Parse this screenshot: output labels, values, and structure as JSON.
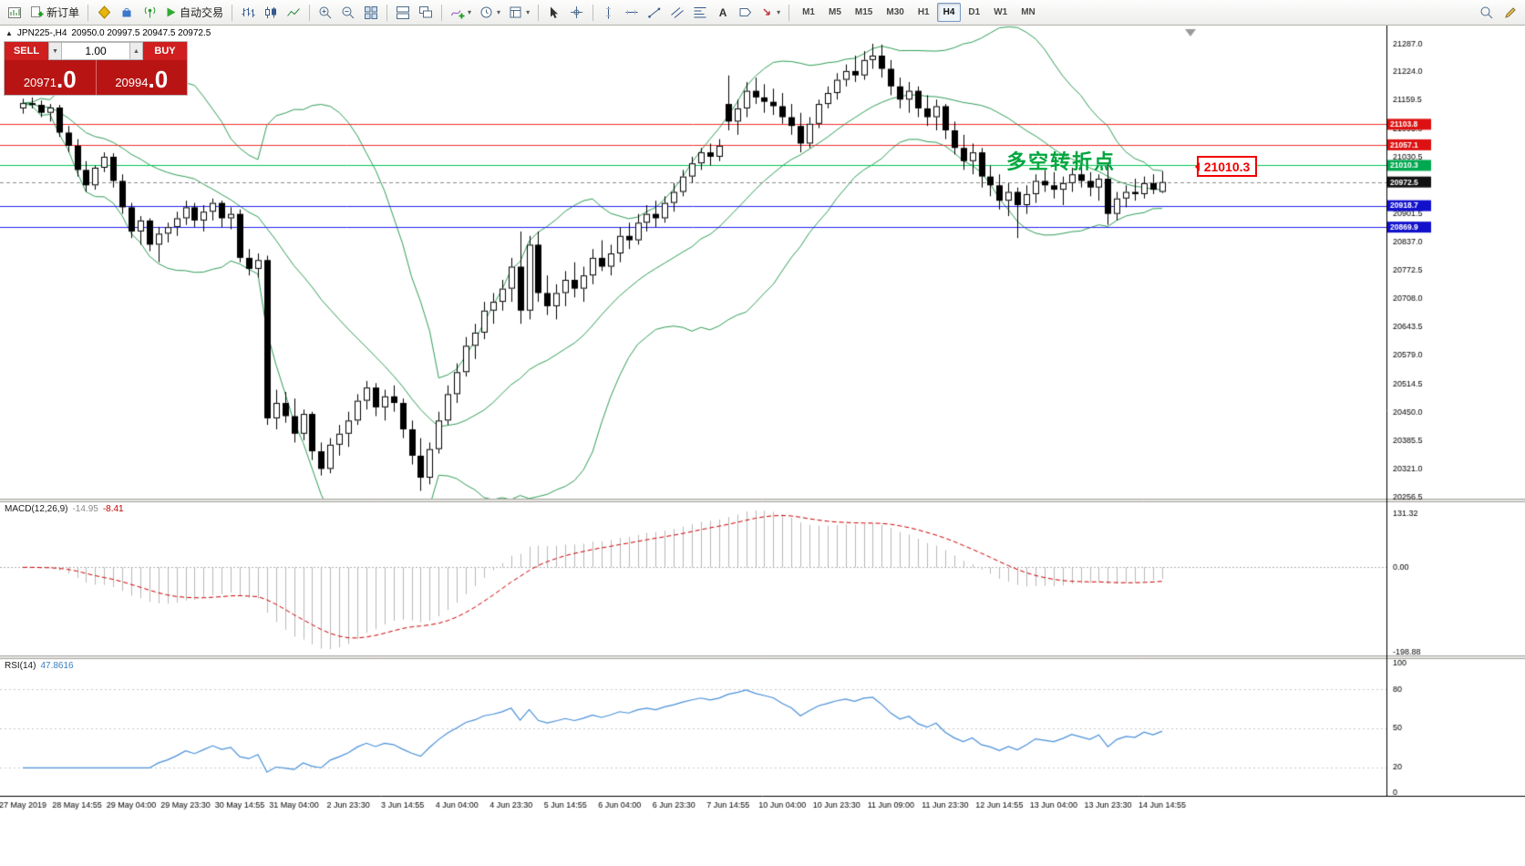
{
  "toolbar": {
    "new_order_label": "新订单",
    "autotrading_label": "自动交易",
    "text_tool_label": "A",
    "caret_icon": "▾",
    "timeframes": [
      "M1",
      "M5",
      "M15",
      "M30",
      "H1",
      "H4",
      "D1",
      "W1",
      "MN"
    ],
    "active_timeframe": "H4"
  },
  "chart_header": {
    "collapse_icon": "▲",
    "symbol": "JPN225-,H4",
    "ohlc": "20950.0 20997.5 20947.5 20972.5"
  },
  "trade_panel": {
    "sell_label": "SELL",
    "buy_label": "BUY",
    "volume": "1.00",
    "spin_down_icon": "▼",
    "spin_up_icon": "▲",
    "sell_price": "20971",
    "sell_price_big": ".0",
    "buy_price": "20994",
    "buy_price_big": ".0"
  },
  "macd_header": {
    "label": "MACD(12,26,9)",
    "main_value": "-14.95",
    "signal_value": "-8.41"
  },
  "rsi_header": {
    "label": "RSI(14)",
    "value": "47.8616"
  },
  "annotations": {
    "turning_point": "多空转折点",
    "price_box": "21010.3"
  },
  "chart_data": {
    "type": "candlestick",
    "symbol": "JPN225-",
    "timeframe": "H4",
    "price_range": [
      20256.5,
      21287.0
    ],
    "y_axis_ticks": [
      21287.0,
      21224.0,
      21159.5,
      21095.0,
      21030.5,
      20901.5,
      20837.0,
      20772.5,
      20708.0,
      20643.5,
      20579.0,
      20514.5,
      20450.0,
      20385.5,
      20321.0,
      20256.5
    ],
    "x_labels": [
      "27 May 2019",
      "28 May 14:55",
      "29 May 04:00",
      "29 May 23:30",
      "30 May 14:55",
      "31 May 04:00",
      "2 Jun 23:30",
      "3 Jun 14:55",
      "4 Jun 04:00",
      "4 Jun 23:30",
      "5 Jun 14:55",
      "6 Jun 04:00",
      "6 Jun 23:30",
      "7 Jun 14:55",
      "10 Jun 04:00",
      "10 Jun 23:30",
      "11 Jun 09:00",
      "11 Jun 23:30",
      "12 Jun 14:55",
      "13 Jun 04:00",
      "13 Jun 23:30",
      "14 Jun 14:55"
    ],
    "candles": [
      [
        21140,
        21162,
        21128,
        21152
      ],
      [
        21152,
        21165,
        21140,
        21148
      ],
      [
        21148,
        21158,
        21120,
        21130
      ],
      [
        21130,
        21150,
        21110,
        21142
      ],
      [
        21142,
        21148,
        21075,
        21085
      ],
      [
        21085,
        21100,
        21040,
        21055
      ],
      [
        21055,
        21070,
        20985,
        21000
      ],
      [
        21000,
        21020,
        20950,
        20965
      ],
      [
        20965,
        21010,
        20955,
        21005
      ],
      [
        21005,
        21040,
        20995,
        21030
      ],
      [
        21030,
        21038,
        20960,
        20975
      ],
      [
        20975,
        20990,
        20900,
        20915
      ],
      [
        20915,
        20925,
        20845,
        20860
      ],
      [
        20860,
        20895,
        20830,
        20885
      ],
      [
        20885,
        20890,
        20815,
        20830
      ],
      [
        20830,
        20870,
        20790,
        20855
      ],
      [
        20855,
        20880,
        20835,
        20870
      ],
      [
        20870,
        20905,
        20850,
        20890
      ],
      [
        20890,
        20930,
        20875,
        20915
      ],
      [
        20915,
        20925,
        20870,
        20885
      ],
      [
        20885,
        20920,
        20860,
        20905
      ],
      [
        20905,
        20935,
        20885,
        20925
      ],
      [
        20925,
        20930,
        20870,
        20890
      ],
      [
        20890,
        20915,
        20865,
        20900
      ],
      [
        20900,
        20910,
        20790,
        20800
      ],
      [
        20800,
        20820,
        20760,
        20775
      ],
      [
        20775,
        20810,
        20755,
        20795
      ],
      [
        20795,
        20805,
        20420,
        20435
      ],
      [
        20435,
        20500,
        20410,
        20470
      ],
      [
        20470,
        20495,
        20425,
        20440
      ],
      [
        20440,
        20480,
        20380,
        20400
      ],
      [
        20400,
        20455,
        20385,
        20445
      ],
      [
        20445,
        20450,
        20340,
        20360
      ],
      [
        20360,
        20380,
        20305,
        20320
      ],
      [
        20320,
        20390,
        20310,
        20375
      ],
      [
        20375,
        20420,
        20350,
        20400
      ],
      [
        20400,
        20450,
        20370,
        20430
      ],
      [
        20430,
        20490,
        20420,
        20475
      ],
      [
        20475,
        20520,
        20455,
        20505
      ],
      [
        20505,
        20515,
        20440,
        20460
      ],
      [
        20460,
        20500,
        20430,
        20485
      ],
      [
        20485,
        20510,
        20450,
        20470
      ],
      [
        20470,
        20480,
        20390,
        20410
      ],
      [
        20410,
        20430,
        20330,
        20350
      ],
      [
        20350,
        20390,
        20270,
        20300
      ],
      [
        20300,
        20380,
        20285,
        20365
      ],
      [
        20365,
        20450,
        20355,
        20430
      ],
      [
        20430,
        20510,
        20420,
        20490
      ],
      [
        20490,
        20560,
        20470,
        20540
      ],
      [
        20540,
        20620,
        20530,
        20600
      ],
      [
        20600,
        20650,
        20570,
        20630
      ],
      [
        20630,
        20700,
        20615,
        20680
      ],
      [
        20680,
        20720,
        20650,
        20700
      ],
      [
        20700,
        20750,
        20680,
        20730
      ],
      [
        20730,
        20800,
        20700,
        20780
      ],
      [
        20780,
        20860,
        20650,
        20680
      ],
      [
        20680,
        20850,
        20660,
        20830
      ],
      [
        20830,
        20860,
        20700,
        20720
      ],
      [
        20720,
        20760,
        20670,
        20690
      ],
      [
        20690,
        20740,
        20660,
        20720
      ],
      [
        20720,
        20770,
        20690,
        20750
      ],
      [
        20750,
        20790,
        20710,
        20730
      ],
      [
        20730,
        20780,
        20700,
        20760
      ],
      [
        20760,
        20820,
        20740,
        20800
      ],
      [
        20800,
        20840,
        20770,
        20780
      ],
      [
        20780,
        20830,
        20760,
        20810
      ],
      [
        20810,
        20870,
        20790,
        20850
      ],
      [
        20850,
        20880,
        20820,
        20840
      ],
      [
        20840,
        20900,
        20830,
        20880
      ],
      [
        20880,
        20920,
        20860,
        20900
      ],
      [
        20900,
        20930,
        20870,
        20890
      ],
      [
        20890,
        20940,
        20880,
        20925
      ],
      [
        20925,
        20970,
        20905,
        20950
      ],
      [
        20950,
        21000,
        20940,
        20985
      ],
      [
        20985,
        21030,
        20970,
        21015
      ],
      [
        21015,
        21050,
        21000,
        21040
      ],
      [
        21040,
        21060,
        21010,
        21030
      ],
      [
        21030,
        21070,
        21020,
        21055
      ],
      [
        21150,
        21215,
        21090,
        21110
      ],
      [
        21110,
        21160,
        21080,
        21140
      ],
      [
        21140,
        21200,
        21120,
        21180
      ],
      [
        21180,
        21210,
        21150,
        21165
      ],
      [
        21165,
        21195,
        21130,
        21155
      ],
      [
        21155,
        21185,
        21125,
        21145
      ],
      [
        21145,
        21175,
        21105,
        21120
      ],
      [
        21120,
        21150,
        21080,
        21100
      ],
      [
        21100,
        21130,
        21040,
        21060
      ],
      [
        21060,
        21120,
        21050,
        21105
      ],
      [
        21105,
        21160,
        21095,
        21150
      ],
      [
        21150,
        21190,
        21140,
        21175
      ],
      [
        21175,
        21220,
        21160,
        21205
      ],
      [
        21205,
        21240,
        21190,
        21225
      ],
      [
        21225,
        21260,
        21200,
        21215
      ],
      [
        21215,
        21270,
        21205,
        21250
      ],
      [
        21250,
        21287,
        21230,
        21260
      ],
      [
        21260,
        21285,
        21210,
        21230
      ],
      [
        21230,
        21250,
        21170,
        21190
      ],
      [
        21190,
        21210,
        21140,
        21160
      ],
      [
        21160,
        21200,
        21130,
        21180
      ],
      [
        21180,
        21190,
        21120,
        21140
      ],
      [
        21140,
        21170,
        21100,
        21120
      ],
      [
        21120,
        21160,
        21090,
        21145
      ],
      [
        21145,
        21150,
        21070,
        21090
      ],
      [
        21090,
        21110,
        21035,
        21050
      ],
      [
        21050,
        21080,
        21000,
        21020
      ],
      [
        21020,
        21060,
        20990,
        21040
      ],
      [
        21040,
        21050,
        20960,
        20985
      ],
      [
        20985,
        21010,
        20940,
        20965
      ],
      [
        20965,
        20990,
        20910,
        20930
      ],
      [
        20930,
        20970,
        20895,
        20950
      ],
      [
        20950,
        20960,
        20845,
        20920
      ],
      [
        20920,
        20965,
        20900,
        20945
      ],
      [
        20945,
        20990,
        20925,
        20975
      ],
      [
        20975,
        21000,
        20950,
        20965
      ],
      [
        20965,
        20995,
        20935,
        20955
      ],
      [
        20955,
        20985,
        20920,
        20970
      ],
      [
        20970,
        21005,
        20950,
        20990
      ],
      [
        20990,
        21010,
        20960,
        20975
      ],
      [
        20975,
        20995,
        20940,
        20960
      ],
      [
        20960,
        20990,
        20930,
        20980
      ],
      [
        20980,
        21015,
        20875,
        20900
      ],
      [
        20900,
        20950,
        20885,
        20935
      ],
      [
        20935,
        20965,
        20915,
        20950
      ],
      [
        20950,
        20980,
        20930,
        20945
      ],
      [
        20945,
        20985,
        20935,
        20970
      ],
      [
        20970,
        20990,
        20945,
        20955
      ],
      [
        20950,
        20997.5,
        20947.5,
        20972.5
      ]
    ],
    "price_lines": [
      {
        "price": 21103.8,
        "label": "21103.8",
        "line_color": "#f03030",
        "tag_color": "#dd1111"
      },
      {
        "price": 21057.1,
        "label": "21057.1",
        "line_color": "#f03030",
        "tag_color": "#dd1111"
      },
      {
        "price": 21010.3,
        "label": "21010.3",
        "line_color": "#00c853",
        "tag_color": "#00a84f"
      },
      {
        "price": 20918.7,
        "label": "20918.7",
        "line_color": "#2222ee",
        "tag_color": "#1111cc"
      },
      {
        "price": 20869.9,
        "label": "20869.9",
        "line_color": "#2222ee",
        "tag_color": "#1111cc"
      }
    ],
    "bid_line": {
      "price": 20972.5,
      "label": "20972.5",
      "tag_color": "#111111"
    },
    "indicators": {
      "bollinger": {
        "period": 20,
        "deviation": 2,
        "color": "#2f9e57"
      },
      "macd": {
        "fast": 12,
        "slow": 26,
        "signal": 9,
        "axis_labels": [
          "131.32",
          "0.00",
          "-198.88"
        ],
        "histogram_color": "#b8b8b8",
        "signal_color": "#cc0000"
      },
      "rsi": {
        "period": 14,
        "axis_labels": [
          "100",
          "80",
          "50",
          "20",
          "0"
        ],
        "axis_values": [
          100,
          80,
          50,
          20,
          0
        ],
        "levels": [
          80,
          50,
          20
        ],
        "line_color": "#4a90d9"
      }
    }
  }
}
